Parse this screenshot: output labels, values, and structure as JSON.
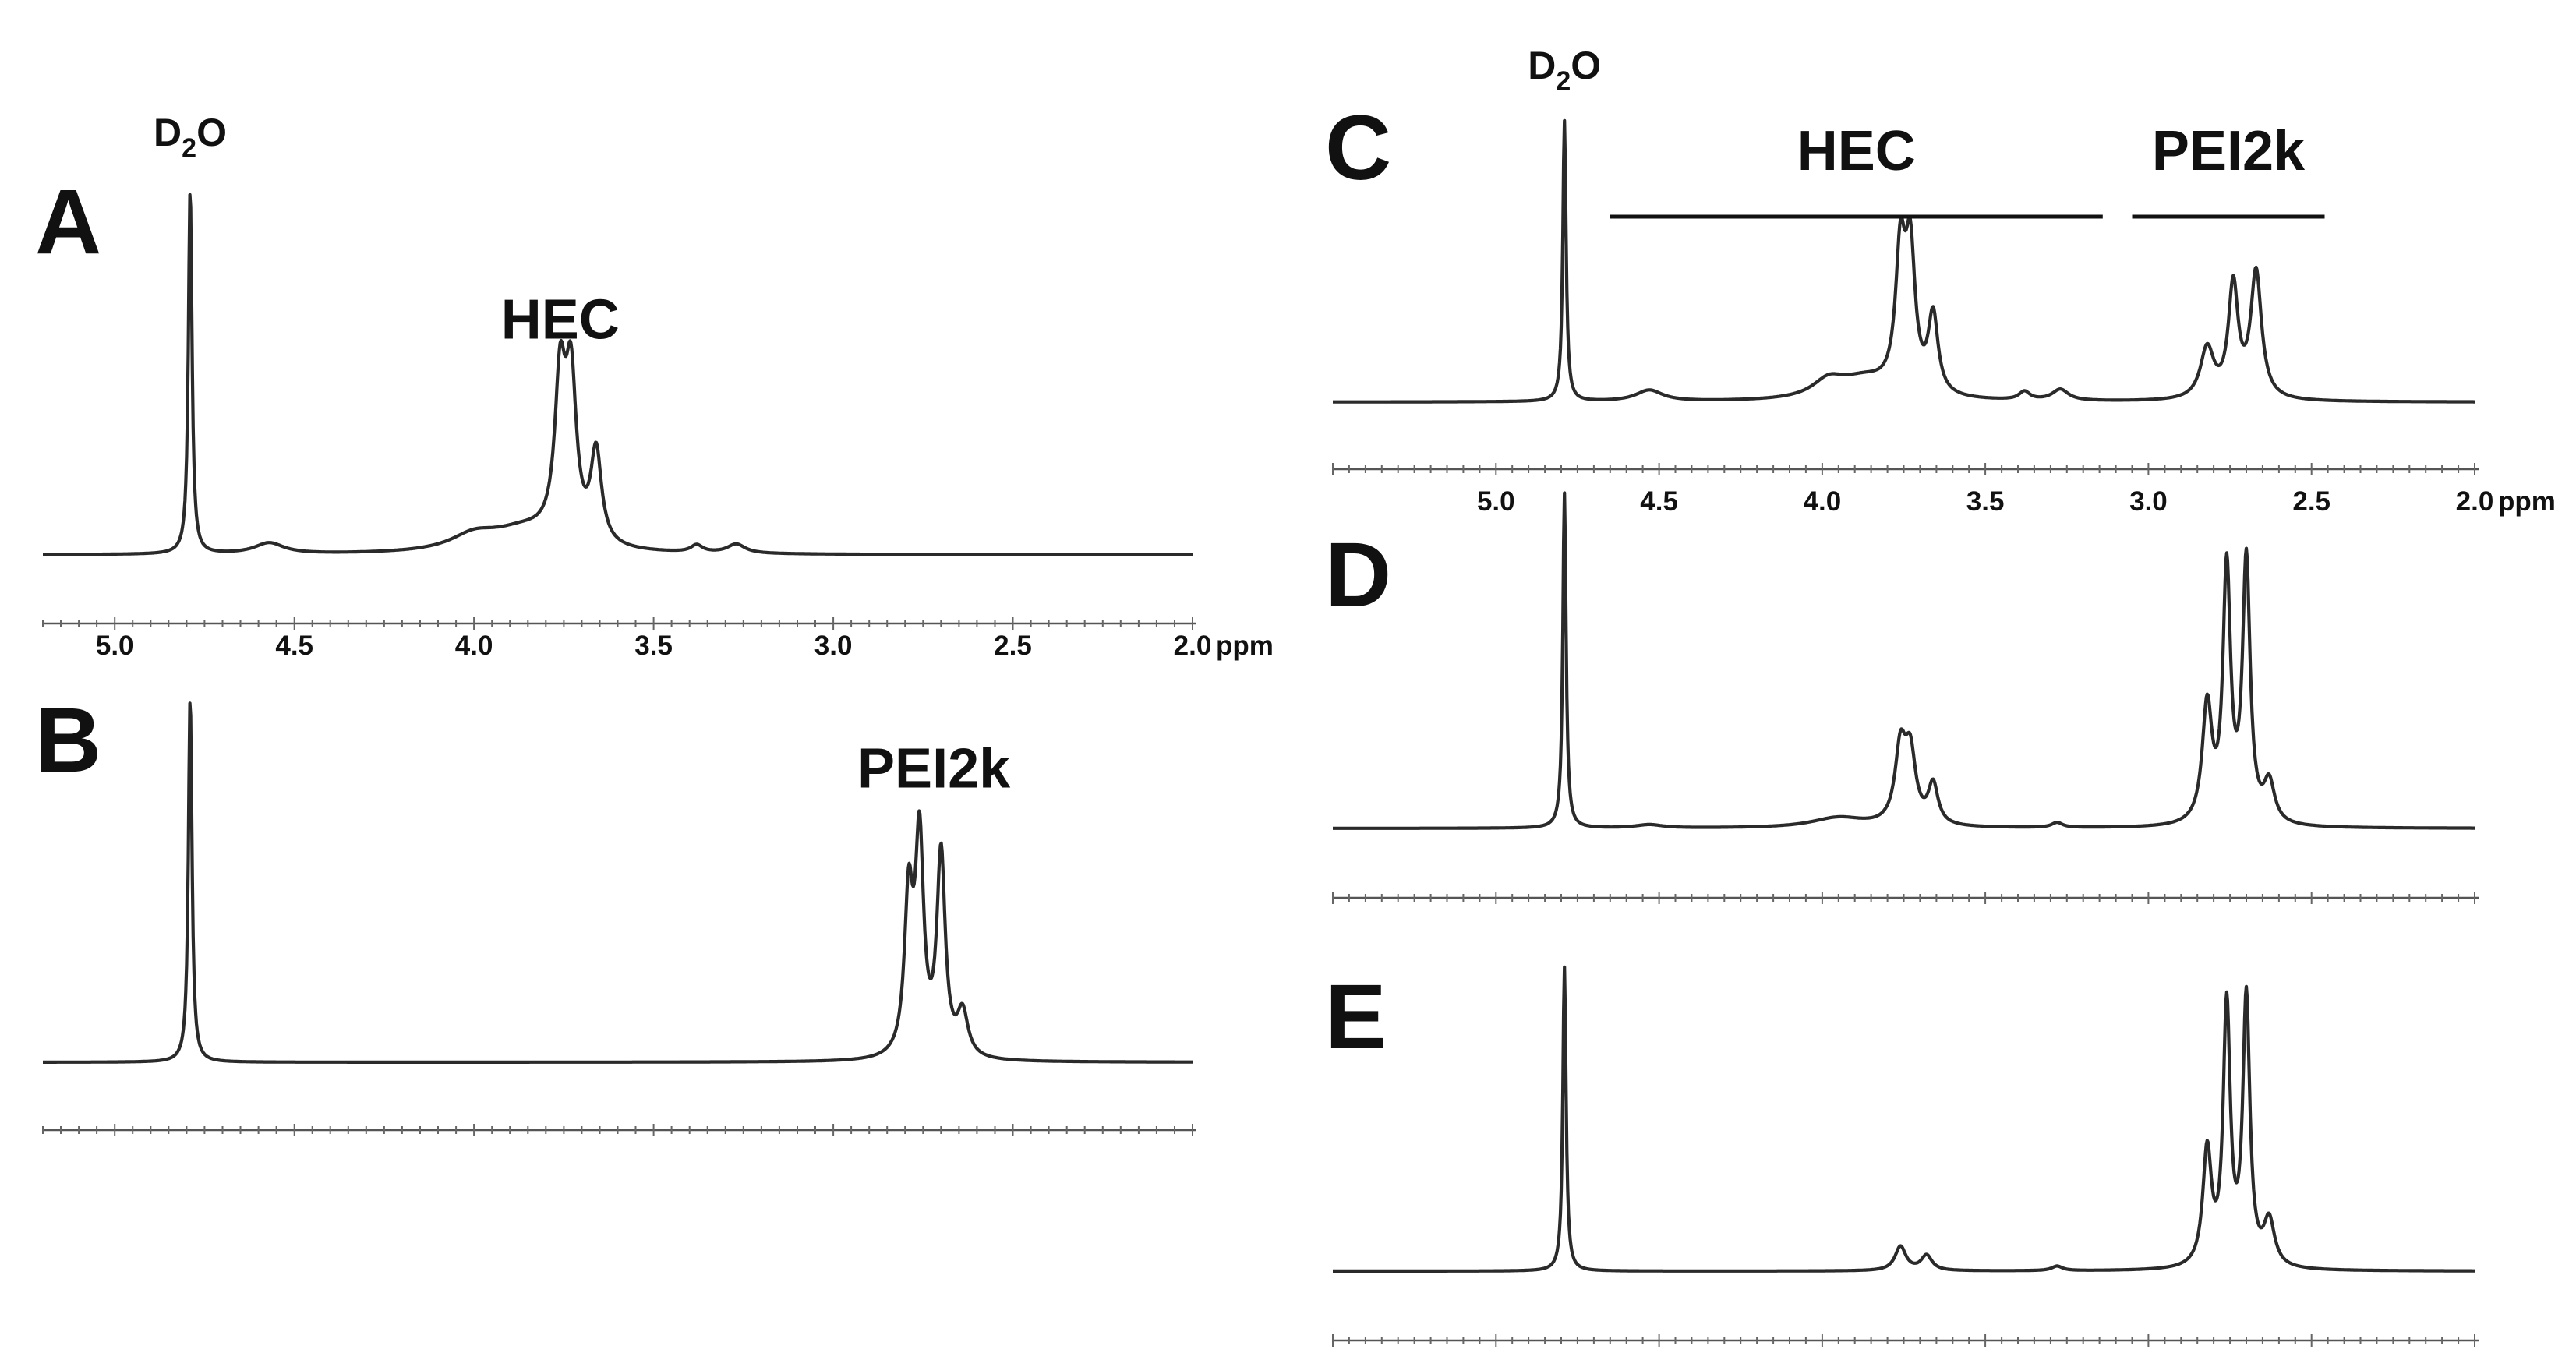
{
  "chart_data": [
    {
      "id": "A",
      "type": "line",
      "panel_label": "A",
      "x_unit_label": "ppm",
      "xlim": [
        5.2,
        2.0
      ],
      "x_reversed": true,
      "ticks": [
        "5.0",
        "4.5",
        "4.0",
        "3.5",
        "3.0",
        "2.5",
        "2.0"
      ],
      "show_tick_labels": true,
      "baseline_noise_ppm": [],
      "peaks": [
        {
          "ppm": 4.79,
          "height": 1.0,
          "width": 0.006
        },
        {
          "ppm": 4.57,
          "height": 0.03,
          "width": 0.05
        },
        {
          "ppm": 4.0,
          "height": 0.04,
          "width": 0.08
        },
        {
          "ppm": 3.86,
          "height": 0.06,
          "width": 0.12
        },
        {
          "ppm": 3.76,
          "height": 0.42,
          "width": 0.018
        },
        {
          "ppm": 3.73,
          "height": 0.42,
          "width": 0.018
        },
        {
          "ppm": 3.66,
          "height": 0.25,
          "width": 0.018
        },
        {
          "ppm": 3.38,
          "height": 0.02,
          "width": 0.02
        },
        {
          "ppm": 3.27,
          "height": 0.025,
          "width": 0.03
        }
      ],
      "annotations": [
        {
          "label_main": "D",
          "label_sub": "2",
          "label_tail": "O",
          "ppm": 4.79
        },
        {
          "label_main": "HEC",
          "label_sub": "",
          "label_tail": "",
          "ppm": 3.76
        }
      ]
    },
    {
      "id": "B",
      "type": "line",
      "panel_label": "B",
      "xlim": [
        5.2,
        2.0
      ],
      "x_reversed": true,
      "show_tick_labels": false,
      "baseline_noise_ppm": [],
      "peaks": [
        {
          "ppm": 4.79,
          "height": 1.0,
          "width": 0.006
        },
        {
          "ppm": 2.79,
          "height": 0.42,
          "width": 0.014
        },
        {
          "ppm": 2.76,
          "height": 0.58,
          "width": 0.014
        },
        {
          "ppm": 2.7,
          "height": 0.55,
          "width": 0.014
        },
        {
          "ppm": 2.64,
          "height": 0.12,
          "width": 0.018
        }
      ],
      "annotations": [
        {
          "label_main": "PEI2k",
          "label_sub": "",
          "label_tail": "",
          "ppm": 2.72
        }
      ]
    },
    {
      "id": "C",
      "type": "line",
      "panel_label": "C",
      "x_unit_label": "ppm",
      "xlim": [
        5.5,
        2.0
      ],
      "x_reversed": true,
      "ticks": [
        "5.0",
        "4.5",
        "4.0",
        "3.5",
        "3.0",
        "2.5",
        "2.0"
      ],
      "show_tick_labels": true,
      "peaks": [
        {
          "ppm": 4.79,
          "height": 1.0,
          "width": 0.006
        },
        {
          "ppm": 4.53,
          "height": 0.04,
          "width": 0.05
        },
        {
          "ppm": 3.98,
          "height": 0.06,
          "width": 0.06
        },
        {
          "ppm": 3.87,
          "height": 0.07,
          "width": 0.1
        },
        {
          "ppm": 3.76,
          "height": 0.48,
          "width": 0.018
        },
        {
          "ppm": 3.73,
          "height": 0.48,
          "width": 0.018
        },
        {
          "ppm": 3.66,
          "height": 0.28,
          "width": 0.018
        },
        {
          "ppm": 3.38,
          "height": 0.03,
          "width": 0.02
        },
        {
          "ppm": 3.27,
          "height": 0.04,
          "width": 0.03
        },
        {
          "ppm": 2.82,
          "height": 0.18,
          "width": 0.025
        },
        {
          "ppm": 2.74,
          "height": 0.4,
          "width": 0.018
        },
        {
          "ppm": 2.67,
          "height": 0.45,
          "width": 0.02
        }
      ],
      "annotations": [
        {
          "label_main": "D",
          "label_sub": "2",
          "label_tail": "O",
          "ppm": 4.79
        }
      ],
      "range_labels": [
        {
          "label": "HEC",
          "from_ppm": 4.65,
          "to_ppm": 3.14
        },
        {
          "label": "PEI2k",
          "from_ppm": 3.05,
          "to_ppm": 2.46
        }
      ]
    },
    {
      "id": "D",
      "type": "line",
      "panel_label": "D",
      "xlim": [
        5.5,
        2.0
      ],
      "x_reversed": true,
      "show_tick_labels": false,
      "peaks": [
        {
          "ppm": 4.79,
          "height": 1.0,
          "width": 0.006
        },
        {
          "ppm": 4.53,
          "height": 0.01,
          "width": 0.05
        },
        {
          "ppm": 3.95,
          "height": 0.03,
          "width": 0.1
        },
        {
          "ppm": 3.76,
          "height": 0.22,
          "width": 0.02
        },
        {
          "ppm": 3.73,
          "height": 0.2,
          "width": 0.02
        },
        {
          "ppm": 3.66,
          "height": 0.12,
          "width": 0.018
        },
        {
          "ppm": 3.28,
          "height": 0.015,
          "width": 0.02
        },
        {
          "ppm": 2.82,
          "height": 0.35,
          "width": 0.018
        },
        {
          "ppm": 2.76,
          "height": 0.75,
          "width": 0.014
        },
        {
          "ppm": 2.7,
          "height": 0.78,
          "width": 0.014
        },
        {
          "ppm": 2.63,
          "height": 0.12,
          "width": 0.02
        }
      ]
    },
    {
      "id": "E",
      "type": "line",
      "panel_label": "E",
      "xlim": [
        5.5,
        2.0
      ],
      "x_reversed": true,
      "show_tick_labels": false,
      "peaks": [
        {
          "ppm": 4.79,
          "height": 1.0,
          "width": 0.006
        },
        {
          "ppm": 3.76,
          "height": 0.08,
          "width": 0.02
        },
        {
          "ppm": 3.68,
          "height": 0.05,
          "width": 0.02
        },
        {
          "ppm": 3.28,
          "height": 0.015,
          "width": 0.02
        },
        {
          "ppm": 2.82,
          "height": 0.38,
          "width": 0.016
        },
        {
          "ppm": 2.76,
          "height": 0.85,
          "width": 0.013
        },
        {
          "ppm": 2.7,
          "height": 0.88,
          "width": 0.013
        },
        {
          "ppm": 2.63,
          "height": 0.15,
          "width": 0.02
        }
      ]
    }
  ]
}
